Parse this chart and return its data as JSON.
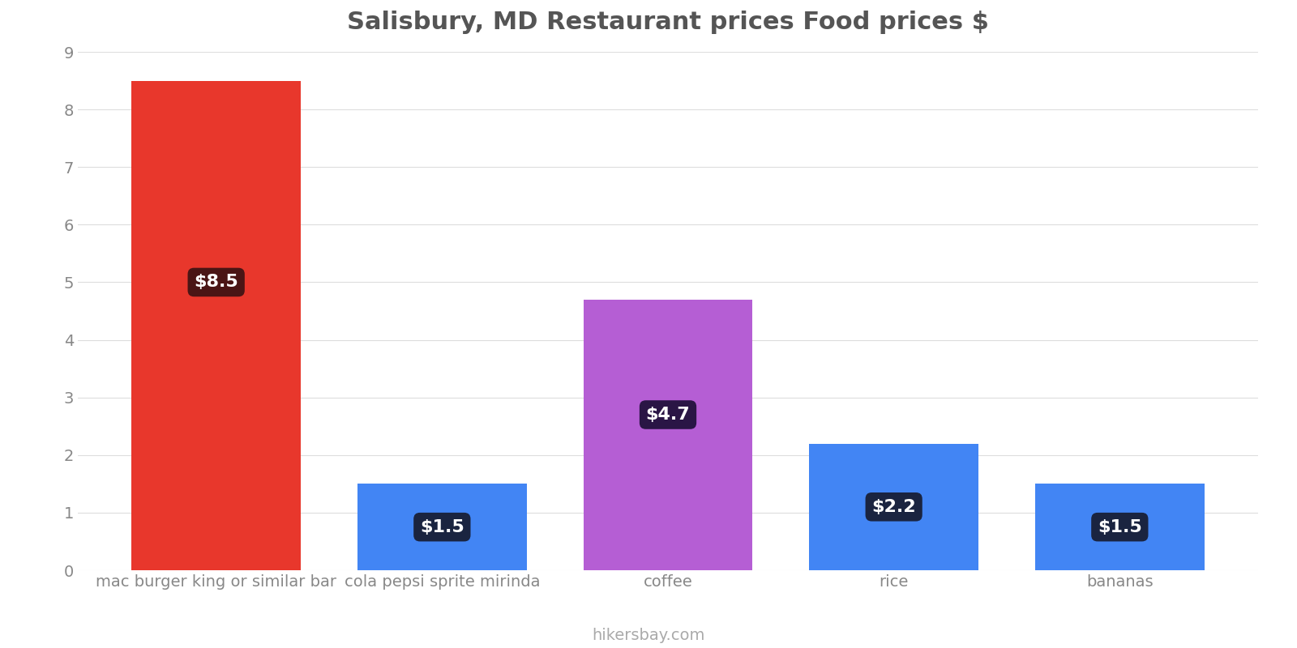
{
  "title": "Salisbury, MD Restaurant prices Food prices $",
  "categories": [
    "mac burger king or similar bar",
    "cola pepsi sprite mirinda",
    "coffee",
    "rice",
    "bananas"
  ],
  "values": [
    8.5,
    1.5,
    4.7,
    2.2,
    1.5
  ],
  "bar_colors": [
    "#e8372c",
    "#4285f4",
    "#b55ed4",
    "#4285f4",
    "#4285f4"
  ],
  "label_bg_colors": [
    "#4a1515",
    "#1a2440",
    "#2a1545",
    "#1a2440",
    "#1a2440"
  ],
  "labels": [
    "$8.5",
    "$1.5",
    "$4.7",
    "$2.2",
    "$1.5"
  ],
  "label_y_positions": [
    5.0,
    0.75,
    2.7,
    1.1,
    0.75
  ],
  "ylim": [
    0,
    9
  ],
  "yticks": [
    0,
    1,
    2,
    3,
    4,
    5,
    6,
    7,
    8,
    9
  ],
  "background_color": "#ffffff",
  "grid_color": "#dddddd",
  "title_color": "#555555",
  "tick_color": "#888888",
  "watermark": "hikersbay.com",
  "title_fontsize": 22,
  "label_fontsize": 16,
  "tick_fontsize": 14,
  "watermark_fontsize": 14,
  "bar_width": 0.75
}
